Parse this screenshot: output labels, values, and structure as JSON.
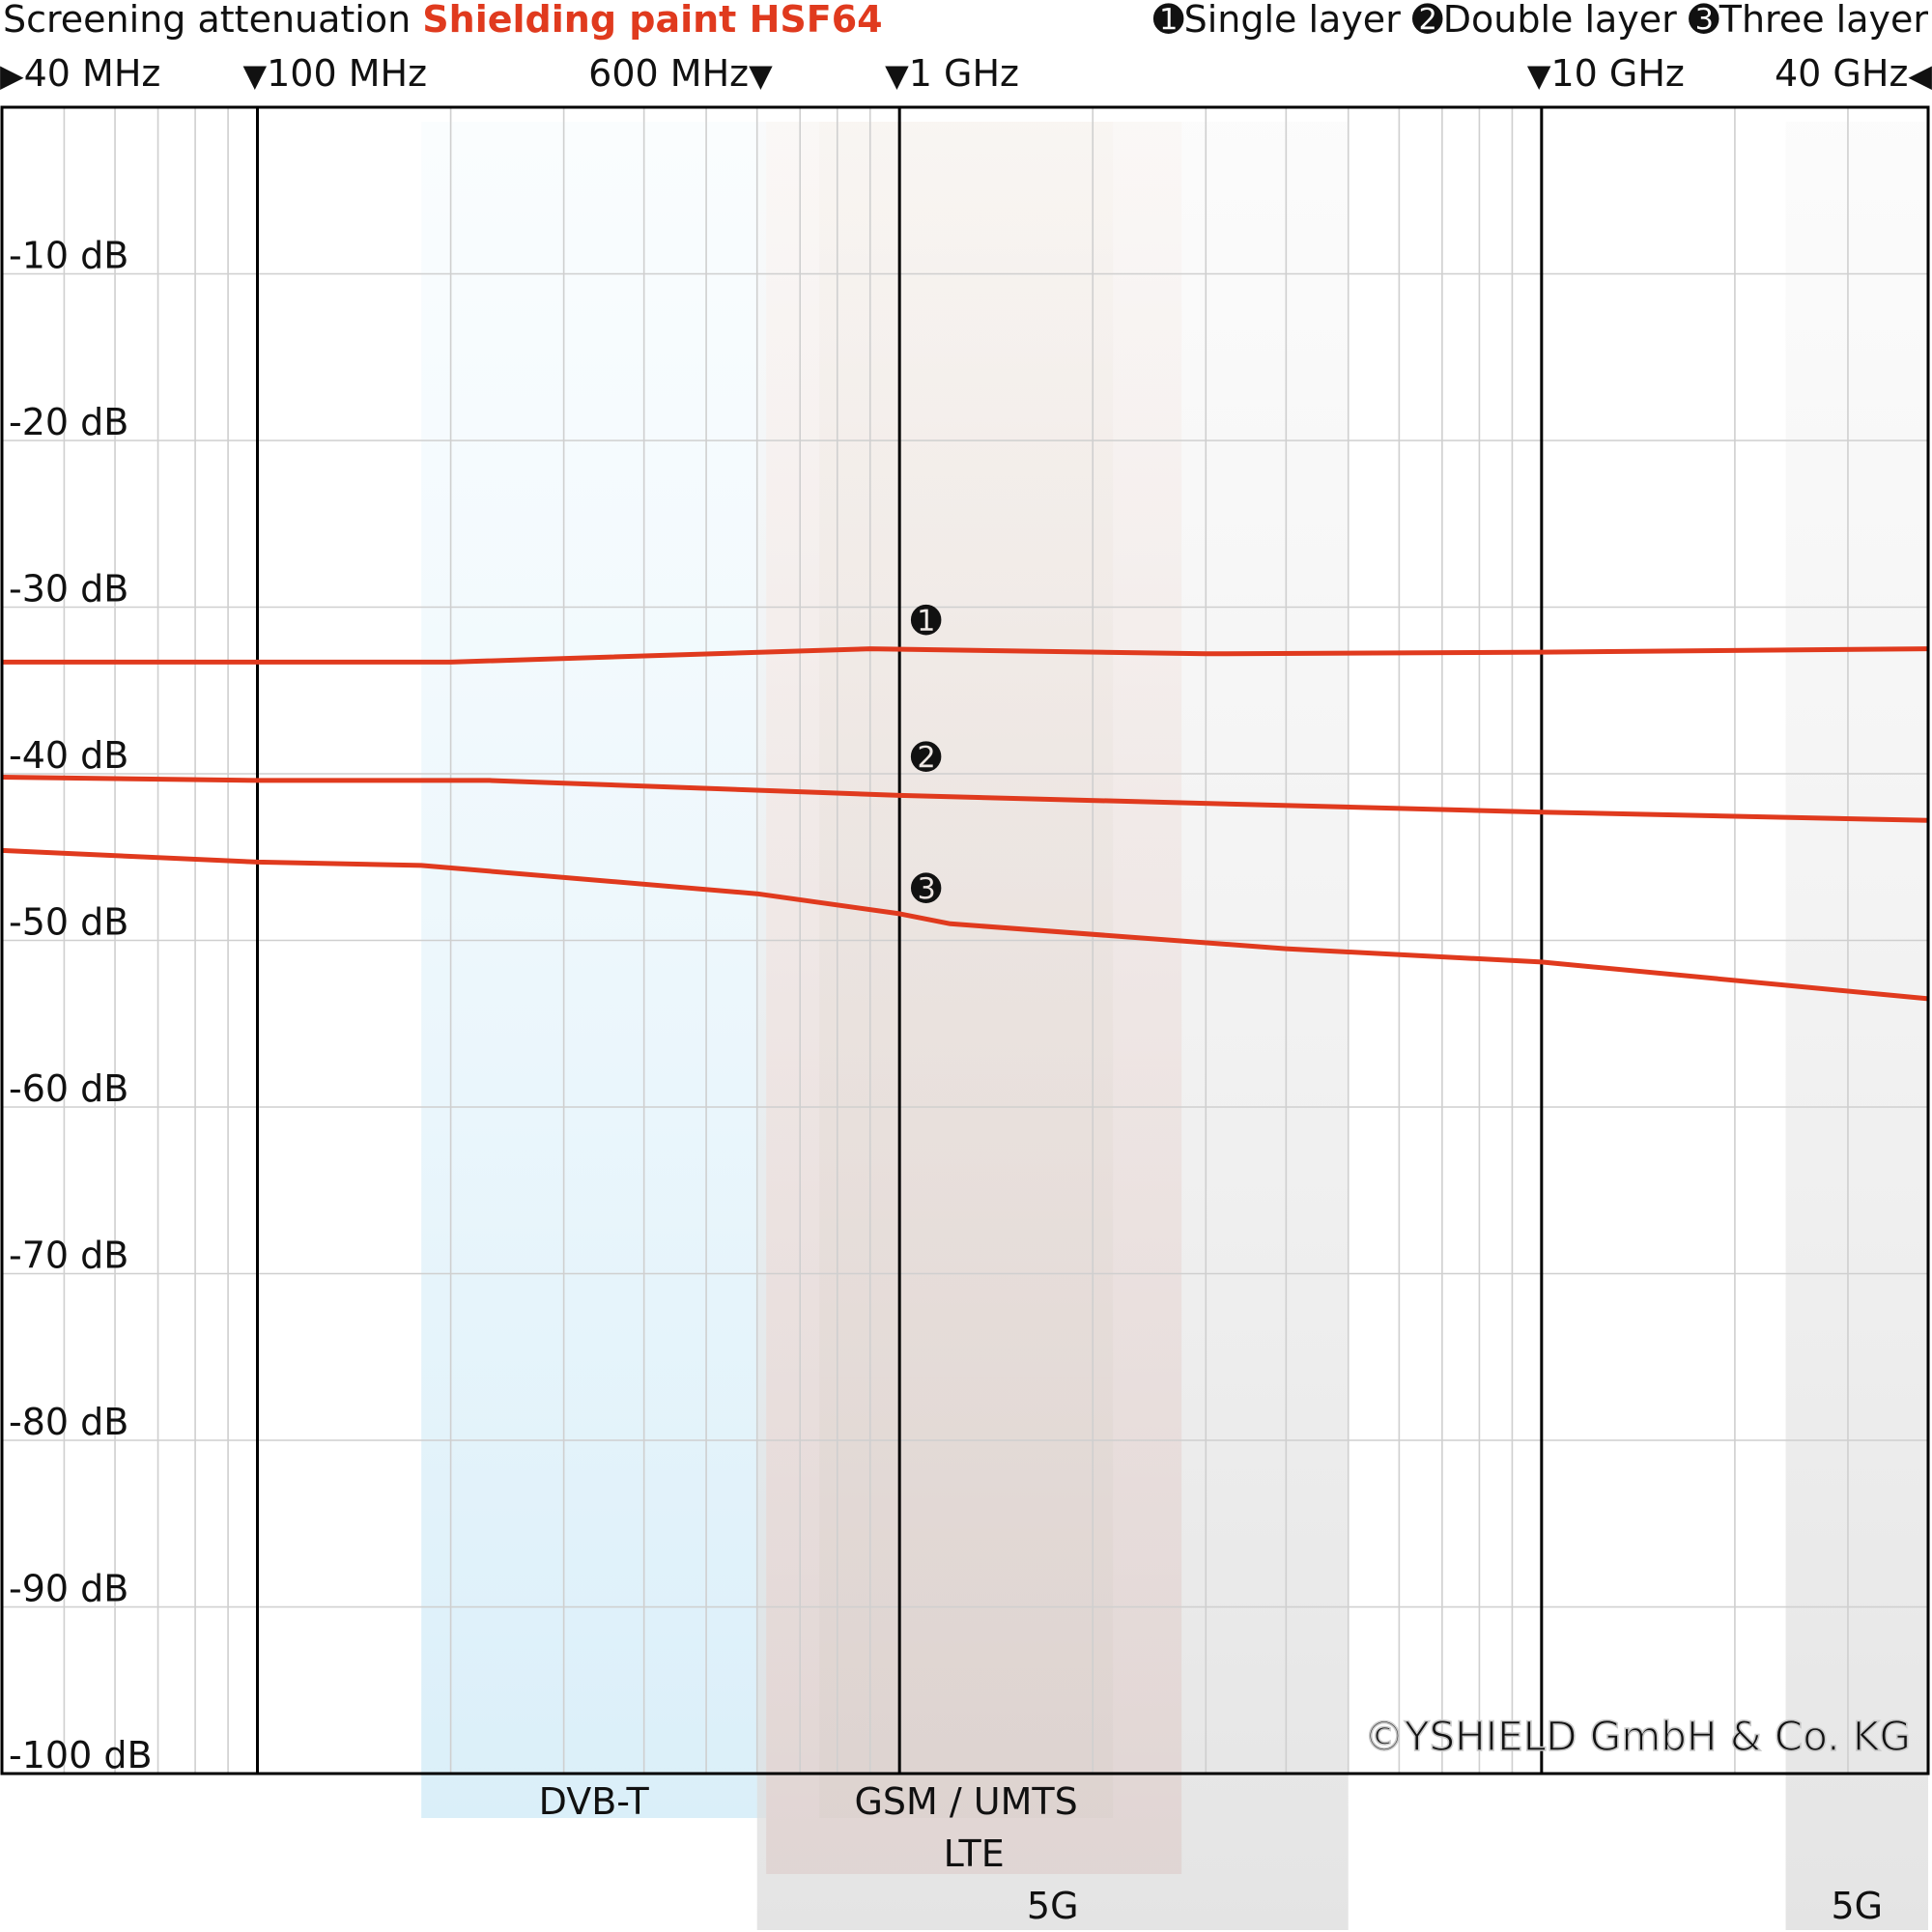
{
  "chart_data": {
    "type": "line",
    "title": "Screening attenuation",
    "subtitle": "Shielding paint HSF64",
    "x_scale": "log",
    "x_range_hz": [
      40000000,
      40000000000
    ],
    "y_range_db": [
      0,
      -100
    ],
    "y_ticks": [
      {
        "value": -10,
        "label": "-10 dB"
      },
      {
        "value": -20,
        "label": "-20 dB"
      },
      {
        "value": -30,
        "label": "-30 dB"
      },
      {
        "value": -40,
        "label": "-40 dB"
      },
      {
        "value": -50,
        "label": "-50 dB"
      },
      {
        "value": -60,
        "label": "-60 dB"
      },
      {
        "value": -70,
        "label": "-70 dB"
      },
      {
        "value": -80,
        "label": "-80 dB"
      },
      {
        "value": -90,
        "label": "-90 dB"
      },
      {
        "value": -100,
        "label": "-100 dB"
      }
    ],
    "x_markers": [
      {
        "freq": 40000000,
        "label": "40 MHz",
        "arrow": "▶",
        "arrow_pos": "before"
      },
      {
        "freq": 100000000,
        "label": "100 MHz",
        "arrow": "▼",
        "arrow_pos": "before"
      },
      {
        "freq": 600000000,
        "label": "600 MHz",
        "arrow": "▼",
        "arrow_pos": "after"
      },
      {
        "freq": 1000000000,
        "label": "1 GHz",
        "arrow": "▼",
        "arrow_pos": "before"
      },
      {
        "freq": 10000000000,
        "label": "10 GHz",
        "arrow": "▼",
        "arrow_pos": "before"
      },
      {
        "freq": 40000000000,
        "label": "40 GHz",
        "arrow": "◀",
        "arrow_pos": "after"
      }
    ],
    "major_lines_hz": [
      100000000,
      1000000000,
      10000000000
    ],
    "legend": [
      {
        "marker": "➊",
        "label": "Single layer"
      },
      {
        "marker": "➋",
        "label": "Double layer"
      },
      {
        "marker": "➌",
        "label": "Three layer"
      }
    ],
    "series": [
      {
        "name": "Single layer",
        "marker": "➊",
        "points": [
          [
            40000000,
            -33.3
          ],
          [
            100000000,
            -33.3
          ],
          [
            200000000,
            -33.3
          ],
          [
            900000000,
            -32.5
          ],
          [
            3000000000,
            -32.8
          ],
          [
            10000000000,
            -32.7
          ],
          [
            40000000000,
            -32.5
          ]
        ],
        "marker_at_hz": 1100000000,
        "marker_db": -30.8
      },
      {
        "name": "Double layer",
        "marker": "➋",
        "points": [
          [
            40000000,
            -40.2
          ],
          [
            100000000,
            -40.4
          ],
          [
            230000000,
            -40.4
          ],
          [
            1000000000,
            -41.3
          ],
          [
            10000000000,
            -42.3
          ],
          [
            40000000000,
            -42.8
          ]
        ],
        "marker_at_hz": 1100000000,
        "marker_db": -39.0
      },
      {
        "name": "Three layer",
        "marker": "➌",
        "points": [
          [
            40000000,
            -44.6
          ],
          [
            100000000,
            -45.3
          ],
          [
            180000000,
            -45.5
          ],
          [
            600000000,
            -47.2
          ],
          [
            1000000000,
            -48.4
          ],
          [
            1200000000,
            -49.0
          ],
          [
            4000000000,
            -50.5
          ],
          [
            10000000000,
            -51.3
          ],
          [
            40000000000,
            -53.5
          ]
        ],
        "marker_at_hz": 1100000000,
        "marker_db": -46.9
      }
    ],
    "bands": [
      {
        "label": "DVB-T",
        "from_hz": 180000000,
        "to_hz": 620000000,
        "row": 1,
        "color": "#cfeaf7",
        "top_color": "#f5fbfe"
      },
      {
        "label": "GSM / UMTS",
        "from_hz": 750000000,
        "to_hz": 2150000000,
        "row": 1,
        "color": "#a9bc9a",
        "top_color": "#f3ecdf"
      },
      {
        "label": "LTE",
        "from_hz": 620000000,
        "to_hz": 2750000000,
        "row": 2,
        "color": "#e5a9a1",
        "top_color": "#fbf0ea"
      },
      {
        "label": "5G",
        "from_hz": 600000000,
        "to_hz": 5000000000,
        "row": 3,
        "color": "#dcdcdc",
        "top_color": "#f8f8f8"
      },
      {
        "label": "5G",
        "from_hz": 24000000000,
        "to_hz": 40000000000,
        "row": 3,
        "color": "#dcdcdc",
        "top_color": "#f8f8f8"
      }
    ],
    "watermark": "©YSHIELD GmbH & Co. KG",
    "colors": {
      "series": "#e03a1e",
      "subtitle": "#e03a1e",
      "major_grid": "#000000",
      "minor_grid": "#cfcfcf",
      "text": "#111111"
    }
  }
}
